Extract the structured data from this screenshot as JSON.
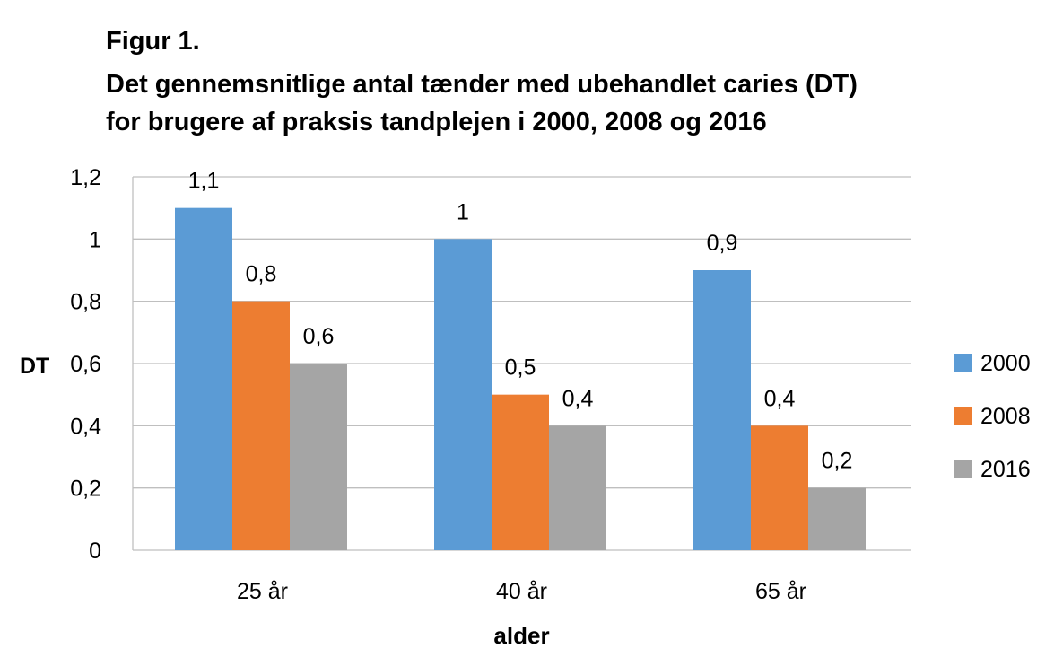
{
  "chart_data": {
    "type": "bar",
    "title_lines": [
      "Figur 1.",
      "Det gennemsnitlige antal tænder med ubehandlet caries (DT)",
      "for brugere af praksis tandplejen i 2000, 2008 og 2016"
    ],
    "xlabel": "alder",
    "ylabel": "DT",
    "categories": [
      "25 år",
      "40 år",
      "65 år"
    ],
    "series": [
      {
        "name": "2000",
        "color": "#5B9BD5",
        "values": [
          1.1,
          1.0,
          0.9
        ],
        "labels": [
          "1,1",
          "1",
          "0,9"
        ]
      },
      {
        "name": "2008",
        "color": "#ED7D31",
        "values": [
          0.8,
          0.5,
          0.4
        ],
        "labels": [
          "0,8",
          "0,5",
          "0,4"
        ]
      },
      {
        "name": "2016",
        "color": "#A5A5A5",
        "values": [
          0.6,
          0.4,
          0.2
        ],
        "labels": [
          "0,6",
          "0,4",
          "0,2"
        ]
      }
    ],
    "ylim": [
      0,
      1.2
    ],
    "yticks": [
      0,
      0.2,
      0.4,
      0.6,
      0.8,
      1.0,
      1.2
    ],
    "ytick_labels": [
      "0",
      "0,2",
      "0,4",
      "0,6",
      "0,8",
      "1",
      "1,2"
    ],
    "grid": true,
    "legend_position": "right"
  }
}
